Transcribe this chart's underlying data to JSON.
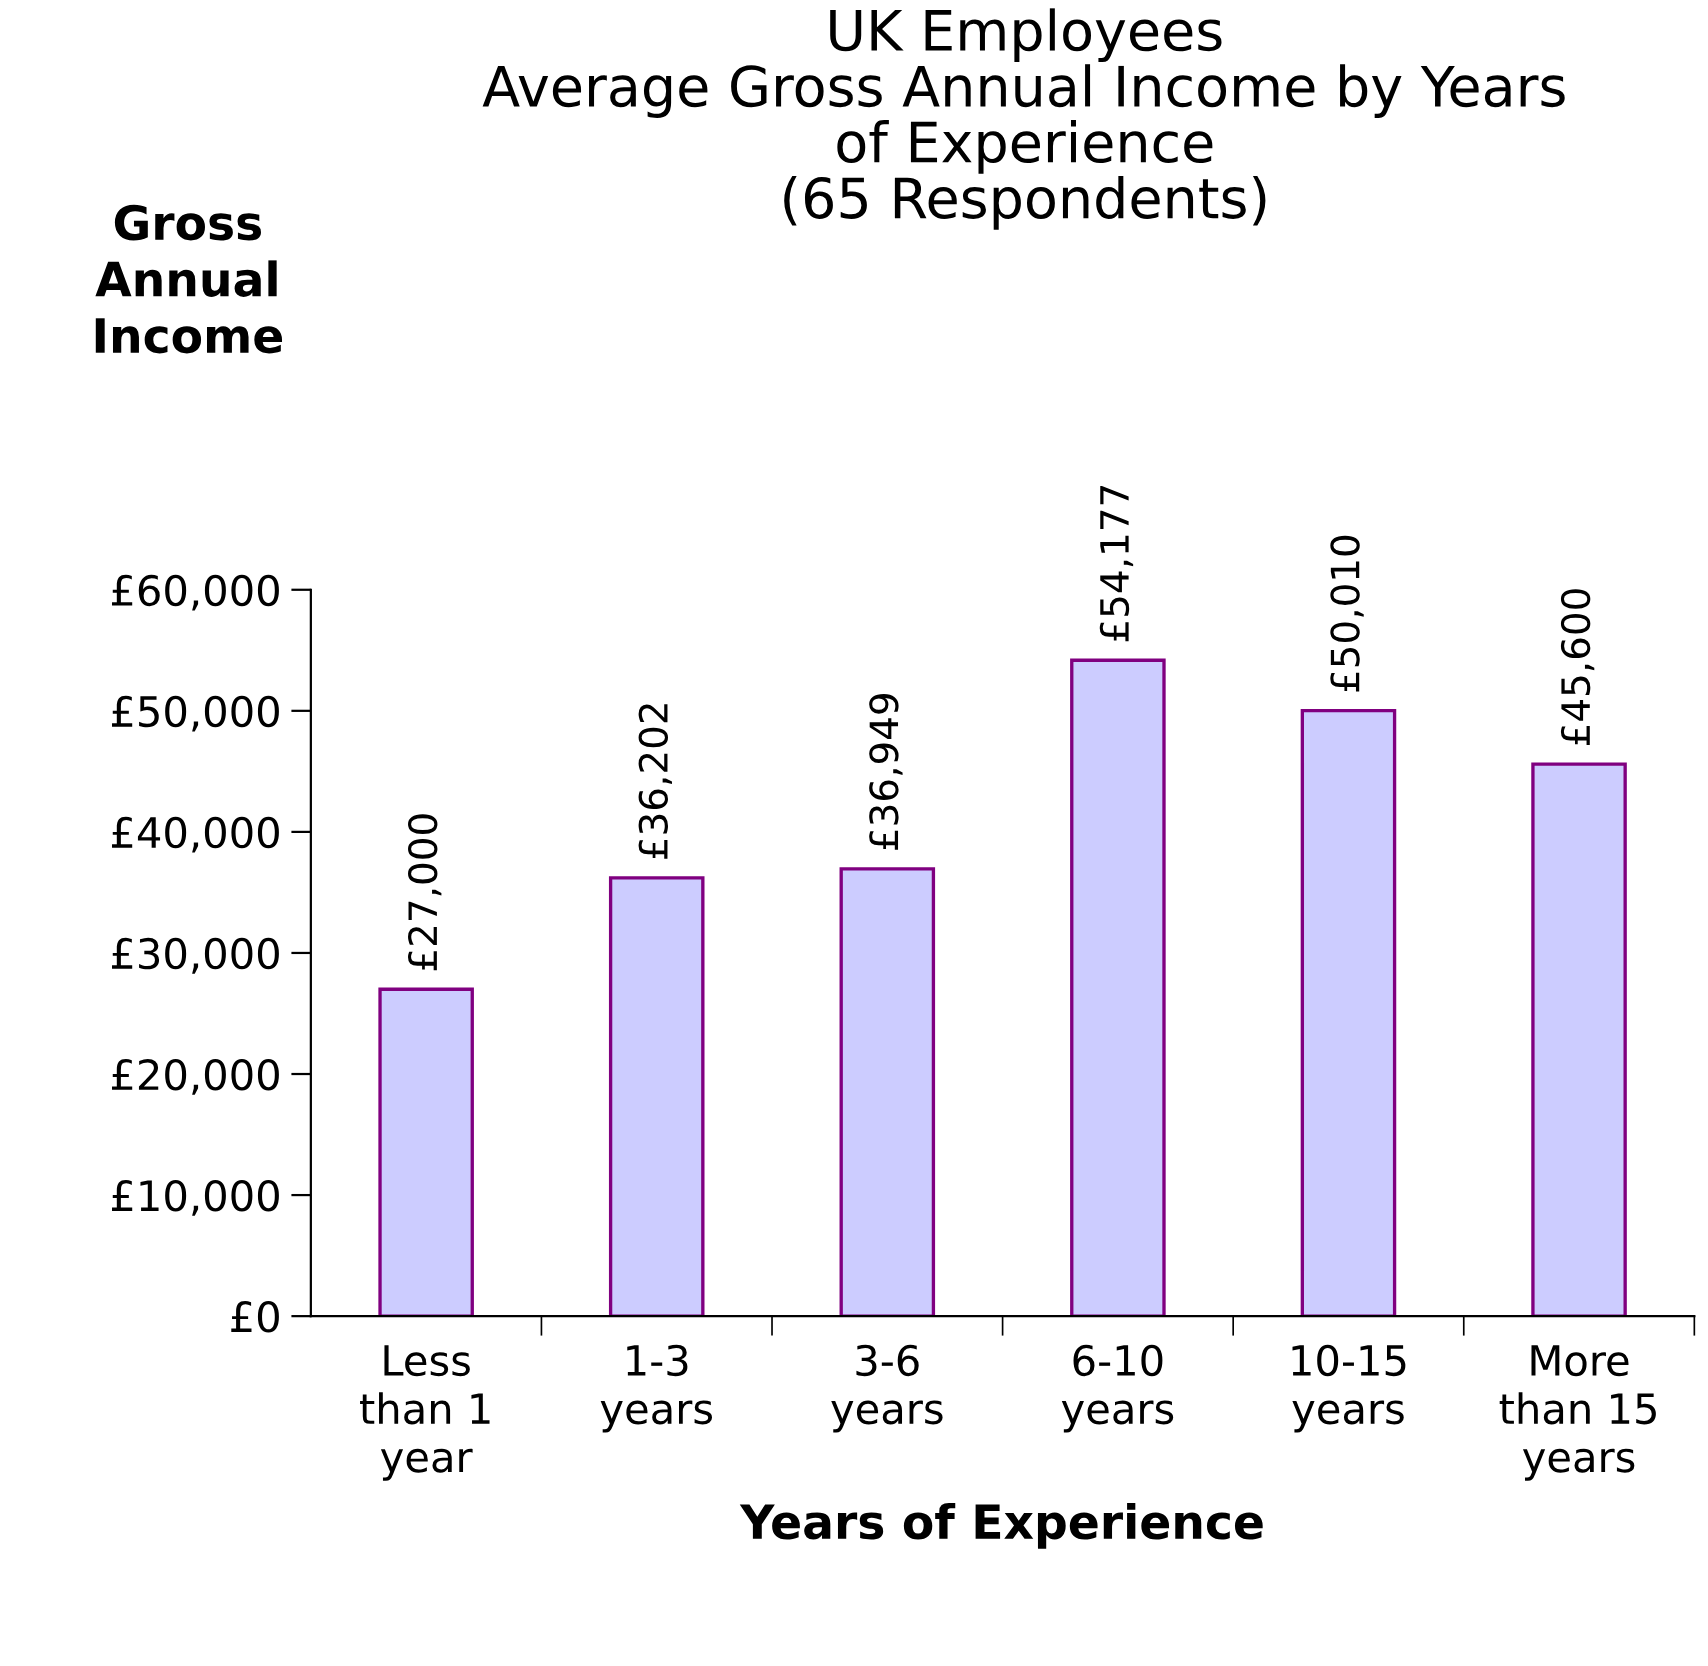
{
  "chart_data": {
    "type": "bar",
    "title": "UK Employees\nAverage Gross Annual Income by Years\nof Experience\n(65 Respondents)",
    "ylabel": "Gross\nAnnual\nIncome",
    "xlabel": "Years of Experience",
    "categories": [
      "Less\nthan 1\nyear",
      "1-3\nyears",
      "3-6\nyears",
      "6-10\nyears",
      "10-15\nyears",
      "More\nthan 15\nyears"
    ],
    "values": [
      27000,
      36202,
      36949,
      54177,
      50010,
      45600
    ],
    "value_labels": [
      "£27,000",
      "£36,202",
      "£36,949",
      "£54,177",
      "£50,010",
      "£45,600"
    ],
    "color": "#ccccff",
    "ylim": [
      0,
      60000
    ],
    "yticks": [
      {
        "value": 0,
        "label": "£0"
      },
      {
        "value": 10000,
        "label": "£10,000"
      },
      {
        "value": 20000,
        "label": "£20,000"
      },
      {
        "value": 30000,
        "label": "£30,000"
      },
      {
        "value": 40000,
        "label": "£40,000"
      },
      {
        "value": 50000,
        "label": "£50,000"
      },
      {
        "value": 60000,
        "label": "£60,000"
      }
    ],
    "grid": false,
    "legend": false
  }
}
